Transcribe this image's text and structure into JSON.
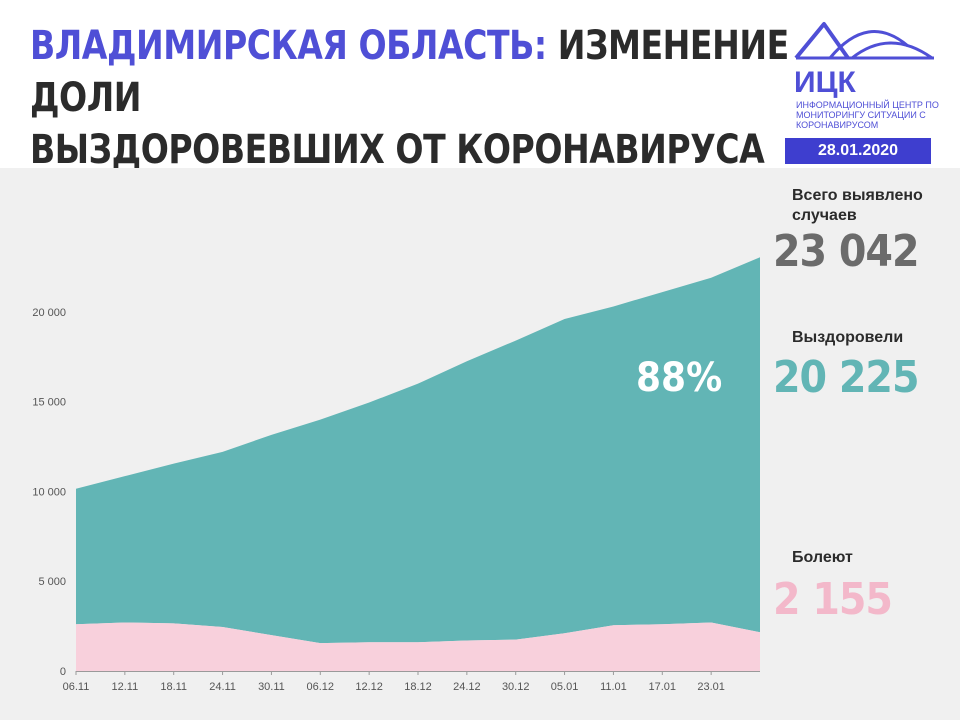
{
  "header": {
    "title_region": "ВЛАДИМИРСКАЯ ОБЛАСТЬ:",
    "title_rest_line1": "ИЗМЕНЕНИЕ ДОЛИ",
    "title_line2": "ВЫЗДОРОВЕВШИХ ОТ КОРОНАВИРУСА",
    "logo_text": "ИЦК",
    "logo_subtitle": "ИНФОРМАЦИОННЫЙ ЦЕНТР ПО МОНИТОРИНГУ СИТУАЦИИ С КОРОНАВИРУСОМ",
    "date": "28.01.2020"
  },
  "stats": {
    "total_label": "Всего выявлено случаев",
    "total_value": "23 042",
    "recovered_label": "Выздоровели",
    "recovered_value": "20 225",
    "recovered_share": "88%",
    "sick_label": "Болеют",
    "sick_value": "2 155"
  },
  "colors": {
    "accent": "#4f4fd6",
    "badge": "#3e3ecf",
    "recovered": "#62b5b5",
    "sick": "#f8d0dc",
    "sick_text": "#f3b8ca",
    "total_text": "#6b6b6b",
    "background": "#f0f0f0"
  },
  "chart_data": {
    "type": "area",
    "title": "",
    "xlabel": "",
    "ylabel": "",
    "ylim": [
      0,
      24000
    ],
    "yticks": [
      0,
      5000,
      10000,
      15000,
      20000
    ],
    "ytick_labels": [
      "0",
      "5 000",
      "10 000",
      "15 000",
      "20 000"
    ],
    "xtick_labels": [
      "06.11",
      "12.11",
      "18.11",
      "24.11",
      "30.11",
      "06.12",
      "12.12",
      "18.12",
      "24.12",
      "30.12",
      "05.01",
      "11.01",
      "17.01",
      "23.01"
    ],
    "grid": false,
    "stacked": true,
    "x": [
      "06.11",
      "12.11",
      "18.11",
      "24.11",
      "30.11",
      "06.12",
      "12.12",
      "18.12",
      "24.12",
      "30.12",
      "05.01",
      "11.01",
      "17.01",
      "23.01",
      "28.01"
    ],
    "series": [
      {
        "name": "Болеют",
        "values": [
          2600,
          2700,
          2650,
          2450,
          2000,
          1550,
          1600,
          1600,
          1700,
          1750,
          2100,
          2550,
          2600,
          2700,
          2155
        ]
      },
      {
        "name": "Выздоровели",
        "values": [
          7550,
          8150,
          8900,
          9750,
          11150,
          12450,
          13350,
          14400,
          15550,
          16650,
          17500,
          17750,
          18500,
          19200,
          20225
        ]
      },
      {
        "name": "Всего выявлено случаев",
        "values": [
          10150,
          10850,
          11550,
          12200,
          13150,
          14000,
          14950,
          16000,
          17250,
          18400,
          19600,
          20300,
          21100,
          21900,
          23042
        ]
      }
    ]
  }
}
